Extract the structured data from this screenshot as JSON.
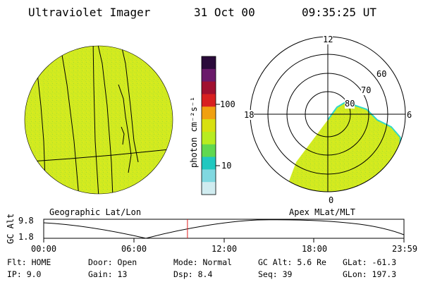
{
  "header": {
    "title": "Ultraviolet Imager",
    "date": "31 Oct 00",
    "time": "09:35:25 UT"
  },
  "colorbar": {
    "unit_label": "photon cm⁻²s⁻¹",
    "tick_labels": [
      "100",
      "10"
    ],
    "colors": [
      "#2a0a3a",
      "#6a1a6a",
      "#a01030",
      "#d82020",
      "#f0a010",
      "#d8e010",
      "#b8ec20",
      "#60d850",
      "#20c8c0",
      "#80d8e0",
      "#d0ecf0"
    ]
  },
  "geographic_panel": {
    "label": "Geographic Lat/Lon",
    "fill_color": "#d2ea20"
  },
  "polar_panel": {
    "label": "Apex MLat/MLT",
    "mlt_labels": {
      "top": "12",
      "left": "18",
      "right": "6",
      "bottom": "0"
    },
    "lat_labels": [
      "60",
      "70",
      "80"
    ],
    "fill_color": "#d2ea20",
    "edge_color": "#30d8c8"
  },
  "altitude_plot": {
    "ylabel": "GC Alt",
    "y_ticks": [
      "9.8",
      "1.8"
    ],
    "x_ticks": [
      "00:00",
      "06:00",
      "12:00",
      "18:00",
      "23:59"
    ],
    "marker_color": "#e02020",
    "current_time_fraction": 0.399
  },
  "status": {
    "flt": "Flt: HOME",
    "ip": "IP:  9.0",
    "door": "Door: Open",
    "gain": "Gain: 13",
    "mode": "Mode: Normal",
    "dsp": "Dsp:    8.4",
    "gc_alt": "GC Alt: 5.6 Re",
    "seq": "Seq: 39",
    "glat": "GLat: -61.3",
    "glon": "GLon: 197.3"
  }
}
